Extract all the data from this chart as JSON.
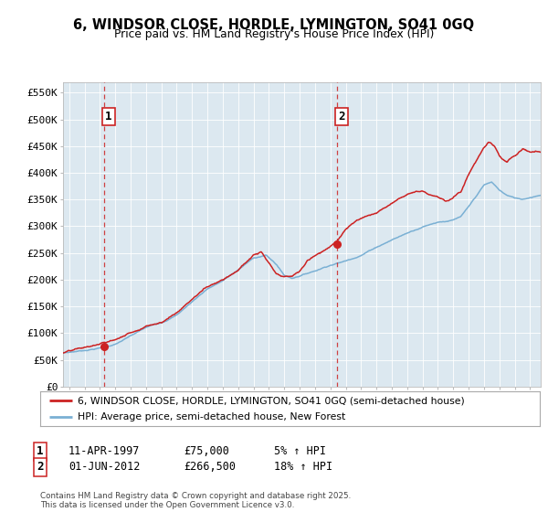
{
  "title": "6, WINDSOR CLOSE, HORDLE, LYMINGTON, SO41 0GQ",
  "subtitle": "Price paid vs. HM Land Registry's House Price Index (HPI)",
  "ylabel_ticks": [
    "£0",
    "£50K",
    "£100K",
    "£150K",
    "£200K",
    "£250K",
    "£300K",
    "£350K",
    "£400K",
    "£450K",
    "£500K",
    "£550K"
  ],
  "ytick_values": [
    0,
    50000,
    100000,
    150000,
    200000,
    250000,
    300000,
    350000,
    400000,
    450000,
    500000,
    550000
  ],
  "ylim": [
    0,
    570000
  ],
  "xlim_start": 1994.6,
  "xlim_end": 2025.7,
  "purchase1": {
    "year": 1997.27,
    "price": 75000,
    "label": "1",
    "date": "11-APR-1997",
    "pct": "5%"
  },
  "purchase2": {
    "year": 2012.42,
    "price": 266500,
    "label": "2",
    "date": "01-JUN-2012",
    "pct": "18%"
  },
  "legend_entry1": "6, WINDSOR CLOSE, HORDLE, LYMINGTON, SO41 0GQ (semi-detached house)",
  "legend_entry2": "HPI: Average price, semi-detached house, New Forest",
  "footer": "Contains HM Land Registry data © Crown copyright and database right 2025.\nThis data is licensed under the Open Government Licence v3.0.",
  "line_color_red": "#cc2222",
  "line_color_blue": "#7ab0d4",
  "background_chart": "#dce8f0",
  "background_fig": "#ffffff",
  "vline_color": "#cc2222",
  "marker_color": "#cc2222",
  "label_box_color": "#cc2222"
}
